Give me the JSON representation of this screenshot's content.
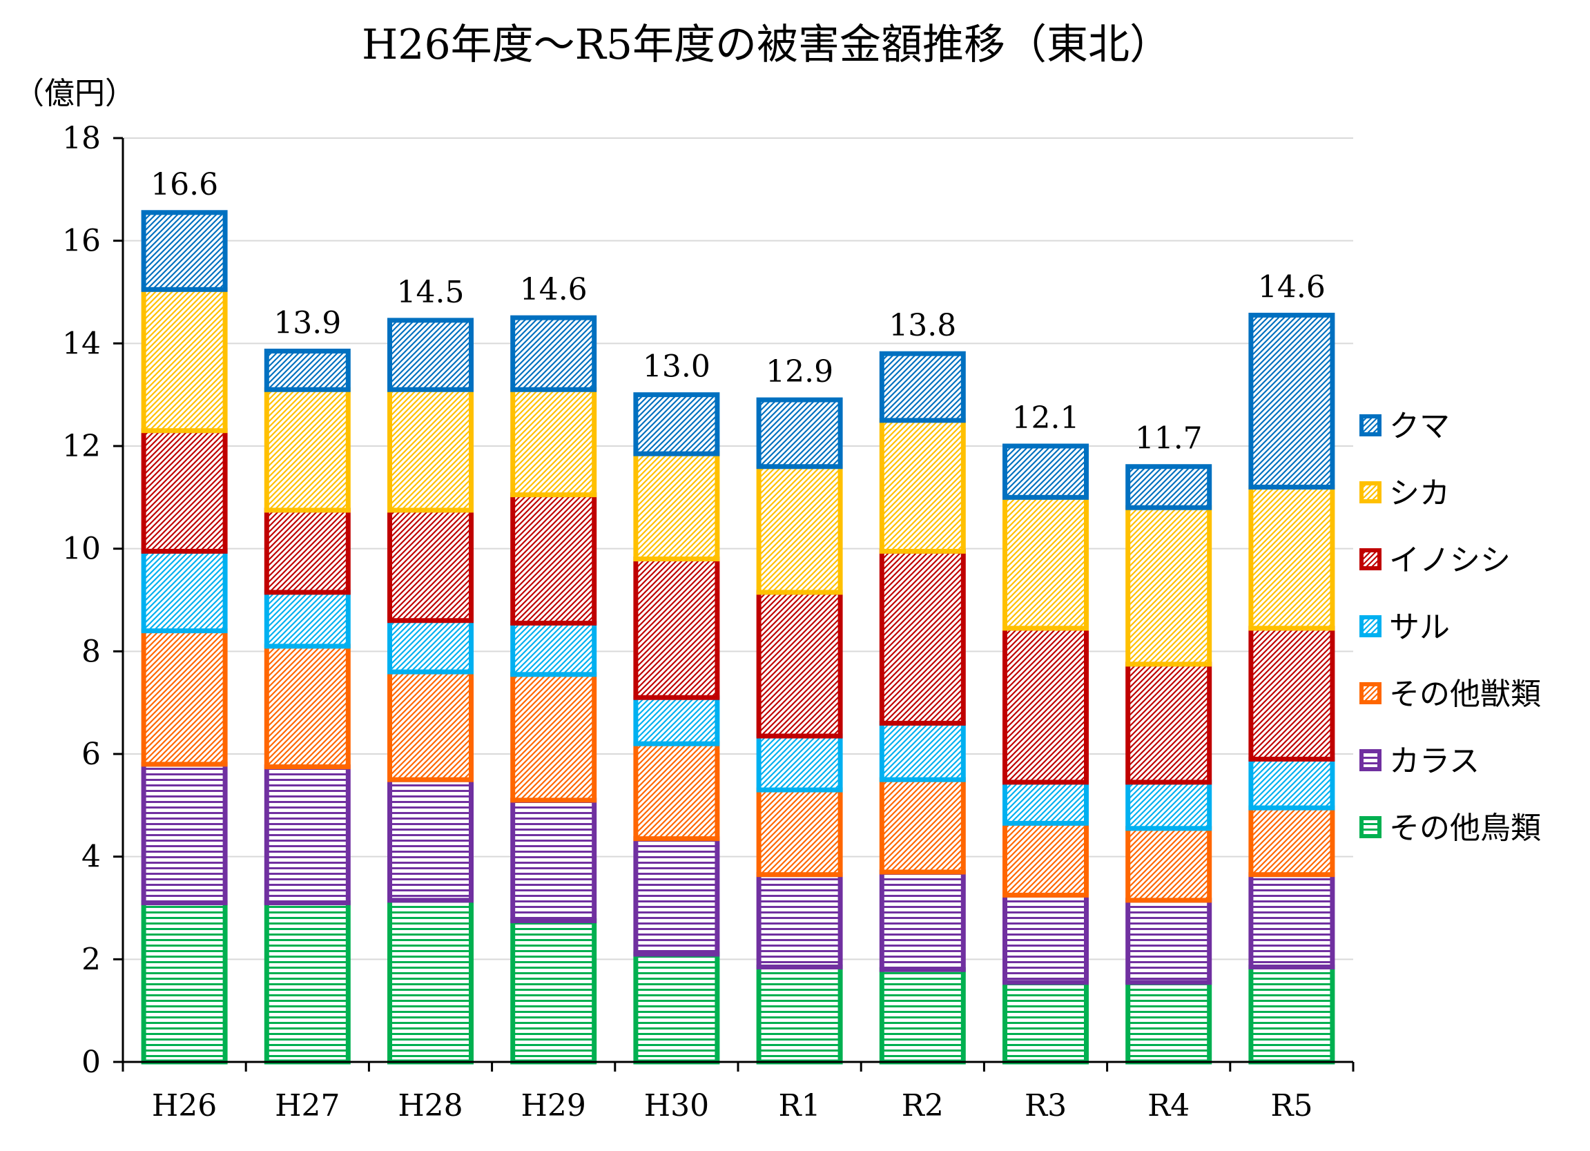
{
  "chart_data": {
    "type": "bar",
    "stacked": true,
    "title": "H26年度～R5年度の被害金額推移（東北）",
    "unit_label": "（億円）",
    "categories": [
      "H26",
      "H27",
      "H28",
      "H29",
      "H30",
      "R1",
      "R2",
      "R3",
      "R4",
      "R5"
    ],
    "totals": [
      "16.6",
      "13.9",
      "14.5",
      "14.6",
      "13.0",
      "12.9",
      "13.8",
      "12.1",
      "11.7",
      "14.6"
    ],
    "ylim": [
      0,
      18
    ],
    "yticks": [
      "0",
      "2",
      "4",
      "6",
      "8",
      "10",
      "12",
      "14",
      "16",
      "18"
    ],
    "grid": true,
    "legend_position": "right",
    "series": [
      {
        "name": "その他鳥類",
        "color": "#00B050",
        "pattern": "horizontal",
        "values": [
          3.1,
          3.1,
          3.15,
          2.75,
          2.1,
          1.85,
          1.8,
          1.55,
          1.55,
          1.85
        ]
      },
      {
        "name": "カラス",
        "color": "#7030A0",
        "pattern": "horizontal",
        "values": [
          2.7,
          2.65,
          2.35,
          2.35,
          2.25,
          1.8,
          1.9,
          1.7,
          1.6,
          1.8
        ]
      },
      {
        "name": "その他獣類",
        "color": "#FF6600",
        "pattern": "diagonal",
        "values": [
          2.6,
          2.35,
          2.1,
          2.45,
          1.85,
          1.65,
          1.8,
          1.4,
          1.4,
          1.3
        ]
      },
      {
        "name": "サル",
        "color": "#00B0F0",
        "pattern": "diagonal",
        "values": [
          1.55,
          1.05,
          1.0,
          1.0,
          0.9,
          1.05,
          1.1,
          0.8,
          0.9,
          0.95
        ]
      },
      {
        "name": "イノシシ",
        "color": "#C00000",
        "pattern": "diagonal",
        "values": [
          2.35,
          1.6,
          2.15,
          2.5,
          2.7,
          2.8,
          3.35,
          3.0,
          2.3,
          2.55
        ]
      },
      {
        "name": "シカ",
        "color": "#FFC000",
        "pattern": "diagonal",
        "values": [
          2.75,
          2.35,
          2.35,
          2.05,
          2.05,
          2.45,
          2.55,
          2.55,
          3.05,
          2.75
        ]
      },
      {
        "name": "クマ",
        "color": "#0070C0",
        "pattern": "diagonal",
        "values": [
          1.5,
          0.75,
          1.35,
          1.4,
          1.15,
          1.3,
          1.3,
          1.0,
          0.8,
          3.35
        ]
      }
    ]
  }
}
